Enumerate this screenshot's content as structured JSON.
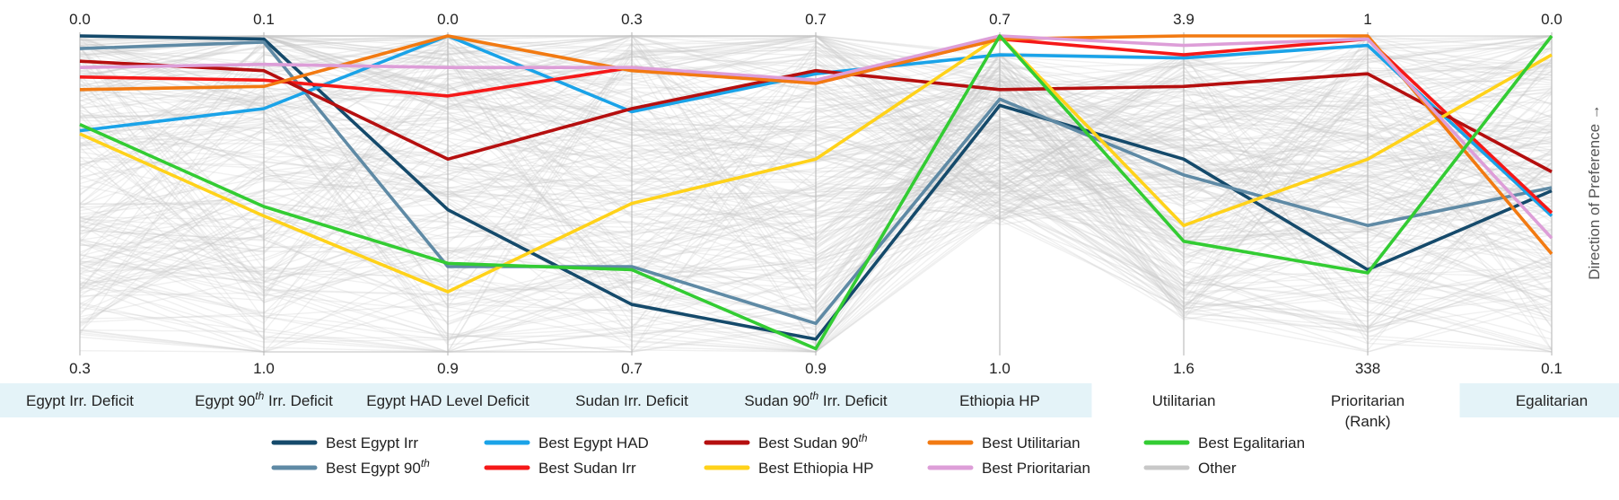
{
  "chart_data": {
    "type": "parallel-coordinates",
    "direction_label": "Direction of Preference →",
    "axes": [
      {
        "label": "Egypt Irr. Deficit",
        "label_parts": [
          {
            "t": "Egypt Irr. Deficit"
          }
        ],
        "top": "0.0",
        "bottom": "0.3",
        "highlighted": true
      },
      {
        "label": "Egypt 90th Irr. Deficit",
        "label_parts": [
          {
            "t": "Egypt 90"
          },
          {
            "t": "th",
            "sup": true
          },
          {
            "t": " Irr. Deficit"
          }
        ],
        "top": "0.1",
        "bottom": "1.0",
        "highlighted": true
      },
      {
        "label": "Egypt HAD Level Deficit",
        "label_parts": [
          {
            "t": "Egypt HAD Level Deficit"
          }
        ],
        "top": "0.0",
        "bottom": "0.9",
        "highlighted": true
      },
      {
        "label": "Sudan Irr. Deficit",
        "label_parts": [
          {
            "t": "Sudan Irr. Deficit"
          }
        ],
        "top": "0.3",
        "bottom": "0.7",
        "highlighted": true
      },
      {
        "label": "Sudan 90th Irr. Deficit",
        "label_parts": [
          {
            "t": "Sudan 90"
          },
          {
            "t": "th",
            "sup": true
          },
          {
            "t": " Irr. Deficit"
          }
        ],
        "top": "0.7",
        "bottom": "0.9",
        "highlighted": true
      },
      {
        "label": "Ethiopia HP",
        "label_parts": [
          {
            "t": "Ethiopia HP"
          }
        ],
        "top": "0.7",
        "bottom": "1.0",
        "highlighted": true
      },
      {
        "label": "Utilitarian",
        "label_parts": [
          {
            "t": "Utilitarian"
          }
        ],
        "top": "3.9",
        "bottom": "1.6",
        "highlighted": false
      },
      {
        "label": "Prioritarian (Rank)",
        "label_parts": [
          {
            "t": "Prioritarian"
          }
        ],
        "label_line2": "(Rank)",
        "top": "1",
        "bottom": "338",
        "highlighted": false
      },
      {
        "label": "Egalitarian",
        "label_parts": [
          {
            "t": "Egalitarian"
          }
        ],
        "top": "0.0",
        "bottom": "0.1",
        "highlighted": true
      }
    ],
    "series": [
      {
        "name": "Best Egypt Irr",
        "legend_parts": [
          {
            "t": "Best Egypt Irr"
          }
        ],
        "color": "#154a6b",
        "values": [
          0.0,
          0.01,
          0.55,
          0.85,
          0.96,
          0.22,
          0.39,
          0.74,
          0.49
        ]
      },
      {
        "name": "Best Egypt 90th",
        "legend_parts": [
          {
            "t": "Best Egypt 90"
          },
          {
            "t": "th",
            "sup": true
          }
        ],
        "color": "#5f8aa5",
        "values": [
          0.04,
          0.02,
          0.73,
          0.73,
          0.91,
          0.2,
          0.44,
          0.6,
          0.48
        ]
      },
      {
        "name": "Best Egypt HAD",
        "legend_parts": [
          {
            "t": "Best Egypt HAD"
          }
        ],
        "color": "#1aa3e8",
        "values": [
          0.3,
          0.23,
          0.0,
          0.24,
          0.12,
          0.06,
          0.07,
          0.03,
          0.57
        ]
      },
      {
        "name": "Best Sudan Irr",
        "legend_parts": [
          {
            "t": "Best Sudan Irr"
          }
        ],
        "color": "#f51818",
        "values": [
          0.13,
          0.14,
          0.19,
          0.1,
          0.15,
          0.01,
          0.06,
          0.01,
          0.56
        ]
      },
      {
        "name": "Best Sudan 90th",
        "legend_parts": [
          {
            "t": "Best Sudan 90"
          },
          {
            "t": "th",
            "sup": true
          }
        ],
        "color": "#b50f0f",
        "values": [
          0.08,
          0.11,
          0.39,
          0.23,
          0.11,
          0.17,
          0.16,
          0.12,
          0.43
        ]
      },
      {
        "name": "Best Ethiopia HP",
        "legend_parts": [
          {
            "t": "Best Ethiopia HP"
          }
        ],
        "color": "#ffd21a",
        "values": [
          0.31,
          0.57,
          0.81,
          0.53,
          0.39,
          0.0,
          0.6,
          0.39,
          0.06
        ]
      },
      {
        "name": "Best Utilitarian",
        "legend_parts": [
          {
            "t": "Best Utilitarian"
          }
        ],
        "color": "#f27a12",
        "values": [
          0.17,
          0.16,
          0.0,
          0.11,
          0.15,
          0.01,
          0.0,
          0.0,
          0.69
        ]
      },
      {
        "name": "Best Prioritarian",
        "legend_parts": [
          {
            "t": "Best Prioritarian"
          }
        ],
        "color": "#dd9ed8",
        "values": [
          0.1,
          0.09,
          0.1,
          0.1,
          0.14,
          0.0,
          0.03,
          0.01,
          0.64
        ]
      },
      {
        "name": "Best Egalitarian",
        "legend_parts": [
          {
            "t": "Best Egalitarian"
          }
        ],
        "color": "#33cc33",
        "values": [
          0.28,
          0.54,
          0.72,
          0.74,
          0.99,
          0.0,
          0.65,
          0.75,
          0.0
        ]
      }
    ],
    "other": {
      "name": "Other",
      "legend_parts": [
        {
          "t": "Other"
        }
      ],
      "color": "#c8c8c8"
    },
    "legend_rows": [
      [
        "Best Egypt Irr",
        "Best Egypt HAD",
        "Best Sudan 90th",
        "Best Utilitarian",
        "Best Egalitarian"
      ],
      [
        "Best Egypt 90th",
        "Best Sudan Irr",
        "Best Ethiopia HP",
        "Best Prioritarian",
        "Other"
      ]
    ]
  }
}
